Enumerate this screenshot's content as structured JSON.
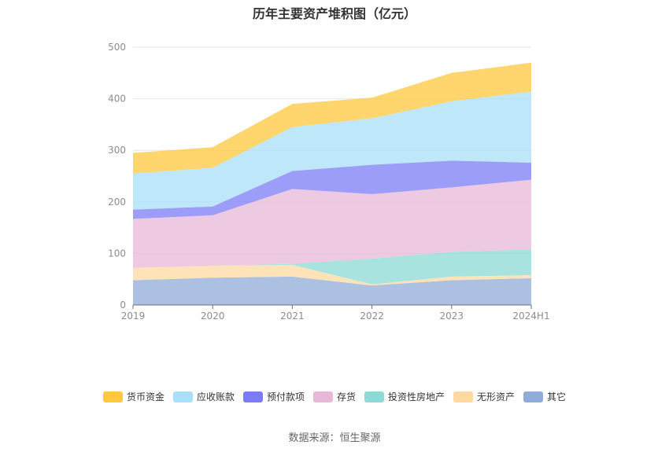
{
  "chart_data": {
    "type": "area",
    "stacked": true,
    "title": "历年主要资产堆积图（亿元）",
    "categories": [
      "2019",
      "2020",
      "2021",
      "2022",
      "2023",
      "2024H1"
    ],
    "ylim": [
      0,
      500
    ],
    "yticks": [
      0,
      100,
      200,
      300,
      400,
      500
    ],
    "grid": true,
    "legend_position": "bottom",
    "series": [
      {
        "name": "其它",
        "color": "#90acd8",
        "values": [
          48,
          53,
          55,
          38,
          48,
          52
        ]
      },
      {
        "name": "无形资产",
        "color": "#ffd9a0",
        "values": [
          24,
          23,
          23,
          2,
          7,
          6
        ]
      },
      {
        "name": "投资性房地产",
        "color": "#8cd9d5",
        "values": [
          0,
          0,
          2,
          50,
          48,
          50
        ]
      },
      {
        "name": "存货",
        "color": "#e8b8d8",
        "values": [
          95,
          98,
          145,
          125,
          125,
          135
        ]
      },
      {
        "name": "预付款项",
        "color": "#7b7cf5",
        "values": [
          18,
          17,
          35,
          57,
          52,
          33
        ]
      },
      {
        "name": "应收账款",
        "color": "#a9dff8",
        "values": [
          70,
          75,
          85,
          90,
          115,
          138
        ]
      },
      {
        "name": "货币资金",
        "color": "#ffc83d",
        "values": [
          40,
          40,
          45,
          40,
          55,
          56
        ]
      }
    ],
    "legend_order": [
      "货币资金",
      "应收账款",
      "预付款项",
      "存货",
      "投资性房地产",
      "无形资产",
      "其它"
    ]
  },
  "source": "数据来源：恒生聚源"
}
